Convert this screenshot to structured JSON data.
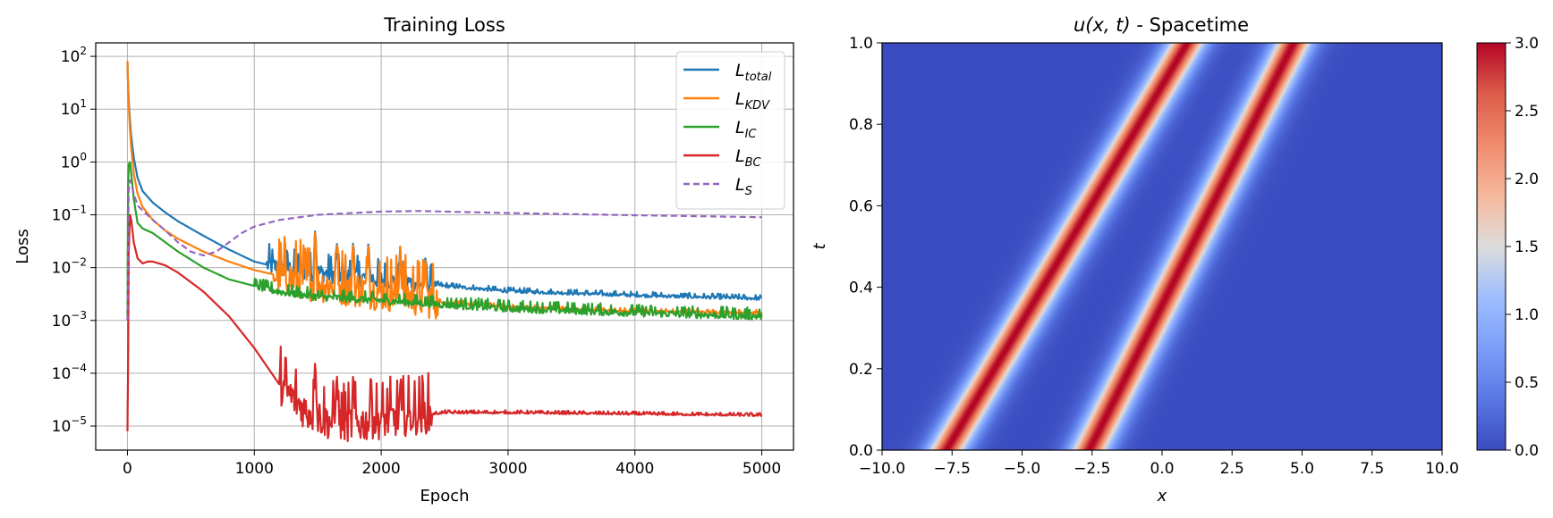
{
  "chart_data": [
    {
      "type": "line",
      "title": "Training Loss",
      "xlabel": "Epoch",
      "ylabel": "Loss",
      "yscale": "log",
      "xlim": [
        -250,
        5250
      ],
      "ylim": [
        3.5e-06,
        180
      ],
      "grid": true,
      "legend_placement": "top-right",
      "x_ticks": [
        {
          "value": 0,
          "label": "0"
        },
        {
          "value": 1000,
          "label": "1000"
        },
        {
          "value": 2000,
          "label": "2000"
        },
        {
          "value": 3000,
          "label": "3000"
        },
        {
          "value": 4000,
          "label": "4000"
        },
        {
          "value": 5000,
          "label": "5000"
        }
      ],
      "y_ticks": [
        {
          "value": 1e-05,
          "base": "10",
          "exp": "−5"
        },
        {
          "value": 0.0001,
          "base": "10",
          "exp": "−4"
        },
        {
          "value": 0.001,
          "base": "10",
          "exp": "−3"
        },
        {
          "value": 0.01,
          "base": "10",
          "exp": "−2"
        },
        {
          "value": 0.1,
          "base": "10",
          "exp": "−1"
        },
        {
          "value": 1,
          "base": "10",
          "exp": "0"
        },
        {
          "value": 10,
          "base": "10",
          "exp": "1"
        },
        {
          "value": 100,
          "base": "10",
          "exp": "2"
        }
      ],
      "series": [
        {
          "name": "L",
          "sub": "total",
          "color": "#1f77b4",
          "dash": false,
          "x": [
            0,
            5,
            10,
            20,
            30,
            50,
            80,
            120,
            200,
            300,
            400,
            600,
            800,
            1000,
            1200,
            1500,
            2000,
            2500,
            3000,
            4000,
            5000
          ],
          "y": [
            80,
            30,
            15,
            6,
            3,
            1.2,
            0.5,
            0.28,
            0.17,
            0.11,
            0.075,
            0.04,
            0.022,
            0.013,
            0.01,
            0.008,
            0.006,
            0.0045,
            0.0036,
            0.003,
            0.0026
          ],
          "noise": [
            {
              "from": 1100,
              "to": 2400,
              "amp": 0.45
            },
            {
              "from": 2400,
              "to": 5000,
              "amp": 0.08
            }
          ],
          "spikes": [
            {
              "x": 1480,
              "y": 0.065
            },
            {
              "x": 1650,
              "y": 0.035
            },
            {
              "x": 1780,
              "y": 0.036
            },
            {
              "x": 1900,
              "y": 0.035
            },
            {
              "x": 2150,
              "y": 0.025
            },
            {
              "x": 2350,
              "y": 0.018
            }
          ]
        },
        {
          "name": "L",
          "sub": "KDV",
          "color": "#ff7f0e",
          "dash": false,
          "x": [
            0,
            5,
            10,
            20,
            30,
            50,
            80,
            120,
            200,
            300,
            400,
            600,
            800,
            1000,
            1200,
            1500,
            2000,
            2500,
            3000,
            4000,
            5000
          ],
          "y": [
            80,
            30,
            12,
            4,
            1.8,
            0.6,
            0.25,
            0.14,
            0.08,
            0.05,
            0.035,
            0.02,
            0.013,
            0.009,
            0.007,
            0.005,
            0.0035,
            0.0022,
            0.0018,
            0.0015,
            0.0014
          ],
          "noise": [
            {
              "from": 1150,
              "to": 2450,
              "amp": 0.9
            },
            {
              "from": 2450,
              "to": 5000,
              "amp": 0.06
            }
          ],
          "spikes": [
            {
              "x": 1480,
              "y": 0.065
            },
            {
              "x": 1650,
              "y": 0.035
            },
            {
              "x": 1780,
              "y": 0.036
            },
            {
              "x": 1900,
              "y": 0.035
            },
            {
              "x": 2150,
              "y": 0.025
            },
            {
              "x": 2350,
              "y": 0.018
            }
          ]
        },
        {
          "name": "L",
          "sub": "IC",
          "color": "#2ca02c",
          "dash": false,
          "x": [
            0,
            5,
            10,
            20,
            30,
            50,
            80,
            120,
            200,
            300,
            400,
            600,
            800,
            1000,
            1200,
            1500,
            2000,
            2500,
            3000,
            4000,
            5000
          ],
          "y": [
            0.001,
            0.3,
            0.9,
            1.0,
            0.6,
            0.2,
            0.07,
            0.055,
            0.045,
            0.03,
            0.02,
            0.01,
            0.006,
            0.0045,
            0.0035,
            0.0028,
            0.0024,
            0.002,
            0.0017,
            0.0014,
            0.0012
          ],
          "noise": [
            {
              "from": 1000,
              "to": 5000,
              "amp": 0.18
            }
          ],
          "spikes": []
        },
        {
          "name": "L",
          "sub": "BC",
          "color": "#d62728",
          "dash": false,
          "x": [
            0,
            5,
            10,
            20,
            30,
            50,
            80,
            120,
            160,
            200,
            300,
            400,
            600,
            800,
            1000,
            1200,
            1400,
            1600,
            1800,
            2000,
            2500,
            3000,
            4000,
            5000
          ],
          "y": [
            8e-06,
            0.0001,
            0.02,
            0.1,
            0.08,
            0.03,
            0.015,
            0.012,
            0.013,
            0.013,
            0.011,
            0.008,
            0.0035,
            0.0012,
            0.0003,
            6e-05,
            2e-05,
            1.2e-05,
            1.1e-05,
            1.3e-05,
            1.8e-05,
            1.8e-05,
            1.7e-05,
            1.6e-05
          ],
          "noise": [
            {
              "from": 1200,
              "to": 2400,
              "amp": 0.9
            },
            {
              "from": 2400,
              "to": 5000,
              "amp": 0.05
            }
          ],
          "spikes": [
            {
              "x": 1480,
              "y": 0.00022
            },
            {
              "x": 1650,
              "y": 0.00012
            },
            {
              "x": 1780,
              "y": 0.00012
            },
            {
              "x": 1920,
              "y": 0.0001
            },
            {
              "x": 2150,
              "y": 6e-05
            }
          ]
        },
        {
          "name": "L",
          "sub": "S",
          "color": "#9467bd",
          "dash": true,
          "x": [
            0,
            10,
            20,
            30,
            50,
            80,
            120,
            200,
            300,
            400,
            500,
            600,
            700,
            800,
            900,
            1000,
            1200,
            1500,
            2000,
            2300,
            2500,
            3000,
            4000,
            5000
          ],
          "y": [
            0.001,
            0.3,
            0.45,
            0.4,
            0.25,
            0.15,
            0.12,
            0.08,
            0.05,
            0.03,
            0.02,
            0.017,
            0.02,
            0.03,
            0.045,
            0.06,
            0.08,
            0.1,
            0.115,
            0.118,
            0.115,
            0.108,
            0.098,
            0.09
          ],
          "noise": [],
          "spikes": []
        }
      ]
    },
    {
      "type": "heatmap",
      "title_prefix": "u",
      "title_args": "(x, t)",
      "title_suffix": " - Spacetime",
      "xlabel": "x",
      "ylabel": "t",
      "xlim": [
        -10,
        10
      ],
      "ylim": [
        0,
        1
      ],
      "colormap": "coolwarm",
      "color_range": [
        0,
        3
      ],
      "solitons": [
        {
          "amplitude": 3.0,
          "center_at_t0": -7.7,
          "speed": 8.6,
          "width": 0.6
        },
        {
          "amplitude": 3.0,
          "center_at_t0": -2.6,
          "speed": 7.3,
          "width": 0.6
        }
      ],
      "x_ticks": [
        "−10.0",
        "−7.5",
        "−5.0",
        "−2.5",
        "0.0",
        "2.5",
        "5.0",
        "7.5",
        "10.0"
      ],
      "x_tick_values": [
        -10,
        -7.5,
        -5,
        -2.5,
        0,
        2.5,
        5,
        7.5,
        10
      ],
      "y_ticks": [
        "0.0",
        "0.2",
        "0.4",
        "0.6",
        "0.8",
        "1.0"
      ],
      "y_tick_values": [
        0,
        0.2,
        0.4,
        0.6,
        0.8,
        1.0
      ],
      "colorbar_ticks": [
        "0.0",
        "0.5",
        "1.0",
        "1.5",
        "2.0",
        "2.5",
        "3.0"
      ],
      "colorbar_tick_values": [
        0,
        0.5,
        1,
        1.5,
        2,
        2.5,
        3
      ]
    }
  ]
}
